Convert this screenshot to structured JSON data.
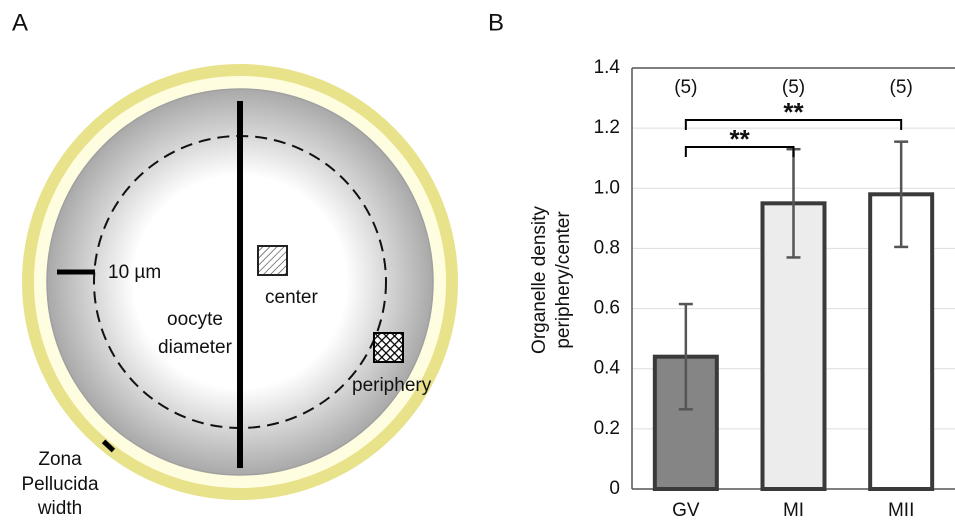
{
  "panel_a": {
    "label": "A",
    "scale_bar": "10 µm",
    "center": "center",
    "diameter": [
      "oocyte",
      "diameter"
    ],
    "periphery": "periphery",
    "zona": [
      "Zona",
      "Pellucida",
      "width"
    ]
  },
  "chart_data": {
    "type": "bar",
    "panel_label": "B",
    "y_label": [
      "Organelle density",
      "periphery/center"
    ],
    "categories": [
      "GV",
      "MI",
      "MII"
    ],
    "values": [
      0.44,
      0.95,
      0.98
    ],
    "errors": [
      0.175,
      0.18,
      0.175
    ],
    "colors": [
      "#858585",
      "#ececec",
      "#ffffff"
    ],
    "edge_color": "#3a3a3a",
    "n_labels": [
      "(5)",
      "(5)",
      "(5)"
    ],
    "significance": [
      {
        "between": [
          "GV",
          "MI"
        ],
        "label": "**"
      },
      {
        "between": [
          "GV",
          "MII"
        ],
        "label": "**"
      }
    ],
    "ylim": [
      0,
      1.4
    ],
    "yticks": [
      0,
      0.2,
      0.4,
      0.6,
      {
        "value": 1,
        "label": "1.0"
      },
      0.8,
      1.2,
      1.4
    ],
    "grid": true
  }
}
